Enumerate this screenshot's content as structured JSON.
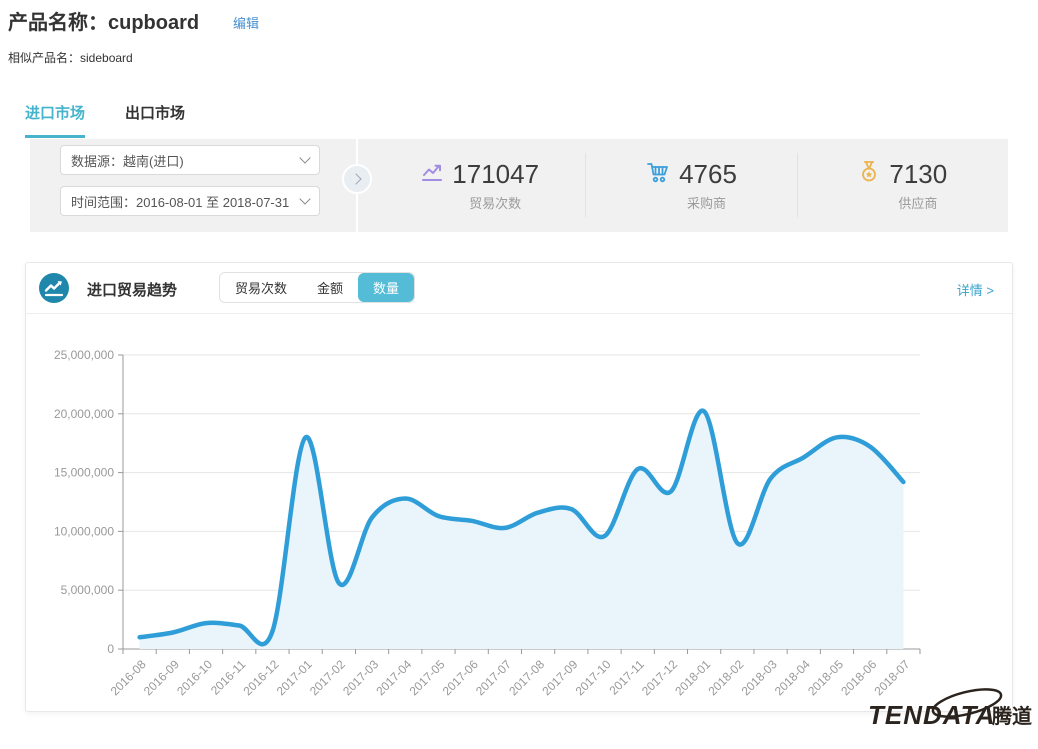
{
  "header": {
    "product_title": "产品名称：cupboard",
    "edit_label": "编辑",
    "similar_product": "相似产品名：sideboard"
  },
  "tabs": [
    {
      "label": "进口市场",
      "active": true
    },
    {
      "label": "出口市场",
      "active": false
    }
  ],
  "filter_bar": {
    "data_source": "数据源：越南(进口)",
    "date_range": "时间范围：2016-08-01 至 2018-07-31"
  },
  "stats": [
    {
      "icon": "trend-line-icon",
      "value": "171047",
      "label": "贸易次数",
      "color": "#a08ce0"
    },
    {
      "icon": "cart-icon",
      "value": "4765",
      "label": "采购商",
      "color": "#3b9fdb"
    },
    {
      "icon": "medal-icon",
      "value": "7130",
      "label": "供应商",
      "color": "#eab44d"
    }
  ],
  "trend_card": {
    "title": "进口贸易趋势",
    "toggles": [
      {
        "label": "贸易次数",
        "active": false
      },
      {
        "label": "金额",
        "active": false
      },
      {
        "label": "数量",
        "active": true
      }
    ],
    "detail_link": "详情 >"
  },
  "chart_data": {
    "type": "line",
    "title": "进口贸易趋势（数量）",
    "categories": [
      "2016-08",
      "2016-09",
      "2016-10",
      "2016-11",
      "2016-12",
      "2017-01",
      "2017-02",
      "2017-03",
      "2017-04",
      "2017-05",
      "2017-06",
      "2017-07",
      "2017-08",
      "2017-09",
      "2017-10",
      "2017-11",
      "2017-12",
      "2018-01",
      "2018-02",
      "2018-03",
      "2018-04",
      "2018-05",
      "2018-06",
      "2018-07"
    ],
    "series": [
      {
        "name": "数量",
        "values": [
          1000000,
          1400000,
          2200000,
          2000000,
          1500000,
          18000000,
          5600000,
          11200000,
          12800000,
          11300000,
          10900000,
          10300000,
          11600000,
          11900000,
          9600000,
          15300000,
          13400000,
          20200000,
          9000000,
          14500000,
          16300000,
          18000000,
          17200000,
          14200000
        ]
      }
    ],
    "ylim": [
      0,
      25000000
    ],
    "ytick_interval": 5000000,
    "grid": true,
    "smooth": true,
    "legend": "none",
    "line_color": "#2f9ed8",
    "area_color": "#e9f4fb",
    "axis_color": "#999999",
    "grid_color": "#e5e5e5",
    "label_color": "#999999"
  },
  "logo": {
    "text": "TENDATA",
    "suffix": "腾道"
  }
}
